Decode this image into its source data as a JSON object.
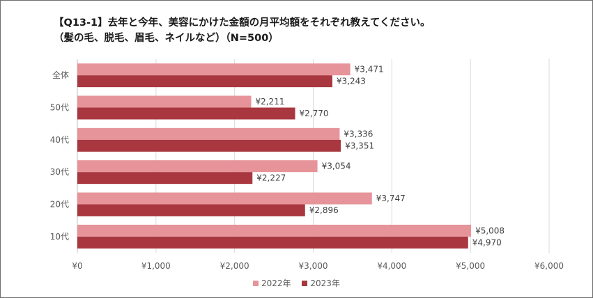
{
  "title_line1": "【Q13-1】去年と今年、美容にかけた金額の月平均額をそれぞれ教えてください。",
  "title_line2": "（髪の毛、脱毛、眉毛、ネイルなど）（N=500）",
  "colors": {
    "s2022": "#e6949a",
    "s2023": "#a8373f",
    "grid": "#d9d9d9"
  },
  "chart_data": {
    "type": "bar",
    "orientation": "horizontal",
    "categories": [
      "全体",
      "50代",
      "40代",
      "30代",
      "20代",
      "10代"
    ],
    "series": [
      {
        "name": "2022年",
        "values": [
          3471,
          2211,
          3336,
          3054,
          3747,
          5008
        ],
        "labels": [
          "¥3,471",
          "¥2,211",
          "¥3,336",
          "¥3,054",
          "¥3,747",
          "¥5,008"
        ]
      },
      {
        "name": "2023年",
        "values": [
          3243,
          2770,
          3351,
          2227,
          2896,
          4970
        ],
        "labels": [
          "¥3,243",
          "¥2,770",
          "¥3,351",
          "¥2,227",
          "¥2,896",
          "¥4,970"
        ]
      }
    ],
    "xlim": [
      0,
      6000
    ],
    "xticks": [
      0,
      1000,
      2000,
      3000,
      4000,
      5000,
      6000
    ],
    "xtick_labels": [
      "¥0",
      "¥1,000",
      "¥2,000",
      "¥3,000",
      "¥4,000",
      "¥5,000",
      "¥6,000"
    ],
    "grid": true,
    "legend": "bottom"
  }
}
